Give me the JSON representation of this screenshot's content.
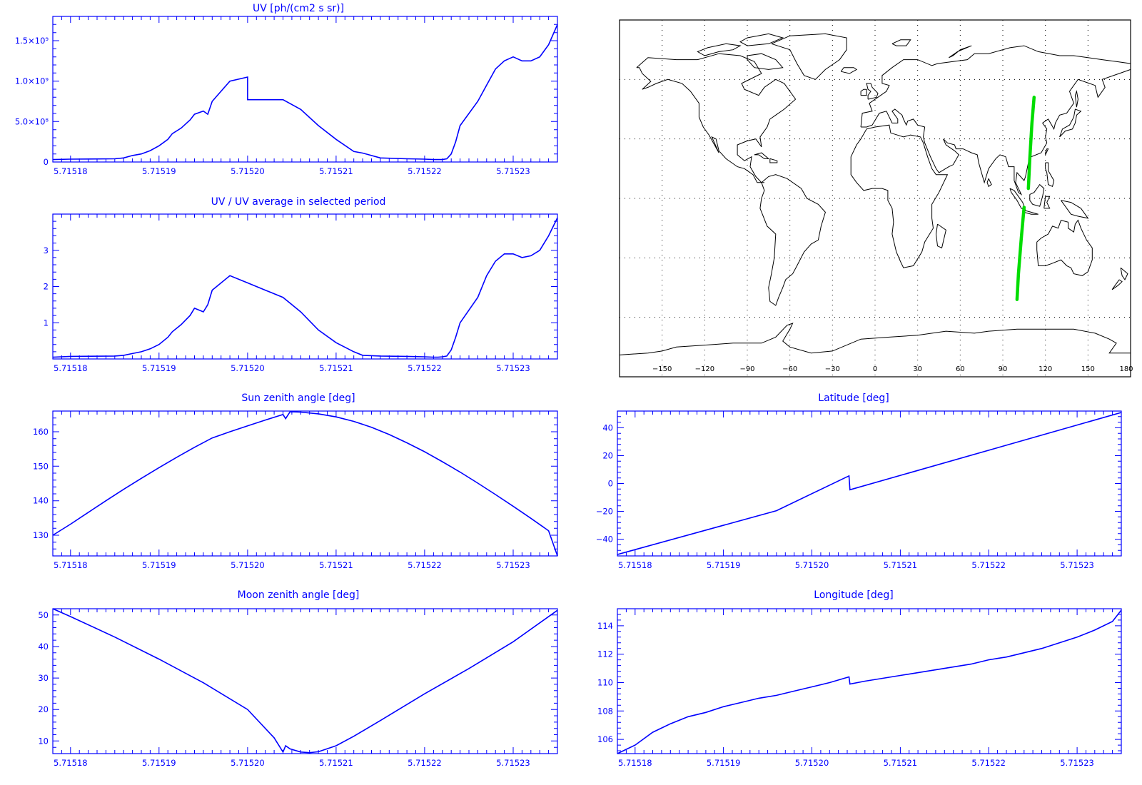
{
  "colors": {
    "plot": "#0000ff",
    "track": "#00dd00",
    "map_ink": "#000000"
  },
  "x_tick_labels": [
    "5.71518",
    "5.71519",
    "5.71520",
    "5.71521",
    "5.71522",
    "5.71523"
  ],
  "chart_data": [
    {
      "id": "uv",
      "type": "line",
      "title": "UV [ph/(cm2 s sr)]",
      "xlim": [
        5.715178,
        5.715235
      ],
      "ylim": [
        0,
        1800000000.0
      ],
      "yticks": [
        {
          "value": 0,
          "label": "0"
        },
        {
          "value": 500000000.0,
          "label": "5.0×10⁸"
        },
        {
          "value": 1000000000.0,
          "label": "1.0×10⁹"
        },
        {
          "value": 1500000000.0,
          "label": "1.5×10⁹"
        }
      ],
      "x": [
        5.715178,
        5.71518,
        5.715185,
        5.715186,
        5.715187,
        5.715188,
        5.715189,
        5.71519,
        5.715191,
        5.7151915,
        5.7151925,
        5.7151935,
        5.715194,
        5.715195,
        5.7151955,
        5.715196,
        5.715198,
        5.7152,
        5.7152,
        5.715202,
        5.715204,
        5.715206,
        5.715208,
        5.71521,
        5.715212,
        5.715213,
        5.715215,
        5.715218,
        5.71522,
        5.715221,
        5.7152215,
        5.715222,
        5.7152225,
        5.715223,
        5.7152235,
        5.715224,
        5.715226,
        5.715227,
        5.715228,
        5.715229,
        5.71523,
        5.715231,
        5.715232,
        5.715233,
        5.715234,
        5.715235
      ],
      "y": [
        30000000.0,
        35000000.0,
        40000000.0,
        50000000.0,
        80000000.0,
        100000000.0,
        140000000.0,
        200000000.0,
        280000000.0,
        350000000.0,
        420000000.0,
        520000000.0,
        590000000.0,
        630000000.0,
        590000000.0,
        750000000.0,
        1000000000.0,
        1050000000.0,
        770000000.0,
        770000000.0,
        770000000.0,
        650000000.0,
        450000000.0,
        280000000.0,
        130000000.0,
        110000000.0,
        50000000.0,
        40000000.0,
        35000000.0,
        30000000.0,
        30000000.0,
        30000000.0,
        40000000.0,
        100000000.0,
        250000000.0,
        450000000.0,
        750000000.0,
        950000000.0,
        1150000000.0,
        1250000000.0,
        1300000000.0,
        1250000000.0,
        1250000000.0,
        1300000000.0,
        1450000000.0,
        1700000000.0
      ]
    },
    {
      "id": "uv_ratio",
      "type": "line",
      "title": "UV / UV average in selected period",
      "xlim": [
        5.715178,
        5.715235
      ],
      "ylim": [
        0,
        4
      ],
      "yticks": [
        {
          "value": 1,
          "label": "1"
        },
        {
          "value": 2,
          "label": "2"
        },
        {
          "value": 3,
          "label": "3"
        }
      ],
      "x": [
        5.715178,
        5.71518,
        5.715185,
        5.715186,
        5.715187,
        5.715188,
        5.715189,
        5.71519,
        5.715191,
        5.7151915,
        5.7151925,
        5.7151935,
        5.715194,
        5.715195,
        5.7151955,
        5.715196,
        5.715198,
        5.7152,
        5.715202,
        5.715204,
        5.715206,
        5.715208,
        5.71521,
        5.715212,
        5.715213,
        5.715215,
        5.715218,
        5.71522,
        5.715221,
        5.7152215,
        5.715222,
        5.7152225,
        5.715223,
        5.7152235,
        5.715224,
        5.715226,
        5.715227,
        5.715228,
        5.715229,
        5.71523,
        5.715231,
        5.715232,
        5.715233,
        5.715234,
        5.715235
      ],
      "y": [
        0.05,
        0.07,
        0.08,
        0.1,
        0.15,
        0.2,
        0.28,
        0.4,
        0.6,
        0.75,
        0.95,
        1.2,
        1.4,
        1.3,
        1.5,
        1.9,
        2.3,
        2.1,
        1.9,
        1.7,
        1.3,
        0.8,
        0.45,
        0.2,
        0.1,
        0.08,
        0.07,
        0.06,
        0.05,
        0.05,
        0.06,
        0.08,
        0.25,
        0.6,
        1.0,
        1.7,
        2.3,
        2.7,
        2.9,
        2.9,
        2.8,
        2.85,
        3.0,
        3.4,
        3.9
      ]
    },
    {
      "id": "sun_zenith",
      "type": "line",
      "title": "Sun zenith angle [deg]",
      "xlim": [
        5.715178,
        5.715235
      ],
      "ylim": [
        124,
        166
      ],
      "yticks": [
        {
          "value": 130,
          "label": "130"
        },
        {
          "value": 140,
          "label": "140"
        },
        {
          "value": 150,
          "label": "150"
        },
        {
          "value": 160,
          "label": "160"
        }
      ],
      "x": [
        5.715178,
        5.71518,
        5.715182,
        5.715184,
        5.715186,
        5.715188,
        5.71519,
        5.715192,
        5.715194,
        5.715196,
        5.715198,
        5.7152,
        5.715202,
        5.715204,
        5.7152043,
        5.7152048,
        5.715206,
        5.715208,
        5.71521,
        5.715212,
        5.715214,
        5.715216,
        5.715218,
        5.71522,
        5.715222,
        5.715224,
        5.715226,
        5.715228,
        5.71523,
        5.715232,
        5.715234,
        5.715235
      ],
      "y": [
        130,
        133.2,
        136.6,
        140,
        143.3,
        146.5,
        149.6,
        152.6,
        155.5,
        158.2,
        160,
        161.7,
        163.4,
        165,
        163.8,
        165.8,
        165.7,
        165.2,
        164.3,
        163,
        161.3,
        159.2,
        156.8,
        154.2,
        151.3,
        148.3,
        145.1,
        141.8,
        138.4,
        134.9,
        131.3,
        124
      ]
    },
    {
      "id": "latitude",
      "type": "line",
      "title": "Latitude [deg]",
      "xlim": [
        5.715178,
        5.715235
      ],
      "ylim": [
        -52,
        52
      ],
      "yticks": [
        {
          "value": -40,
          "label": "−40"
        },
        {
          "value": -20,
          "label": "−20"
        },
        {
          "value": 0,
          "label": "0"
        },
        {
          "value": 20,
          "label": "20"
        },
        {
          "value": 40,
          "label": "40"
        }
      ],
      "x": [
        5.715178,
        5.715196,
        5.7152042,
        5.7152043,
        5.715235
      ],
      "y": [
        -51,
        -19.5,
        5.5,
        -4.5,
        51
      ]
    },
    {
      "id": "moon_zenith",
      "type": "line",
      "title": "Moon zenith angle [deg]",
      "xlim": [
        5.715178,
        5.715235
      ],
      "ylim": [
        6,
        52
      ],
      "yticks": [
        {
          "value": 10,
          "label": "10"
        },
        {
          "value": 20,
          "label": "20"
        },
        {
          "value": 30,
          "label": "30"
        },
        {
          "value": 40,
          "label": "40"
        },
        {
          "value": 50,
          "label": "50"
        }
      ],
      "x": [
        5.715178,
        5.71518,
        5.715185,
        5.71519,
        5.715195,
        5.7152,
        5.715203,
        5.715204,
        5.7152043,
        5.7152048,
        5.715206,
        5.715207,
        5.715208,
        5.71521,
        5.715212,
        5.715215,
        5.71522,
        5.715225,
        5.71523,
        5.715235
      ],
      "y": [
        52,
        49.5,
        43,
        36,
        28.5,
        20,
        11,
        6.5,
        8.5,
        7.5,
        6.5,
        6.3,
        6.6,
        8.5,
        11.5,
        16.5,
        25,
        33,
        41.5,
        51.5
      ]
    },
    {
      "id": "longitude",
      "type": "line",
      "title": "Longitude [deg]",
      "xlim": [
        5.715178,
        5.715235
      ],
      "ylim": [
        105,
        115.2
      ],
      "yticks": [
        {
          "value": 106,
          "label": "106"
        },
        {
          "value": 108,
          "label": "108"
        },
        {
          "value": 110,
          "label": "110"
        },
        {
          "value": 112,
          "label": "112"
        },
        {
          "value": 114,
          "label": "114"
        }
      ],
      "x": [
        5.715178,
        5.71518,
        5.715182,
        5.715184,
        5.715186,
        5.715188,
        5.71519,
        5.715192,
        5.715194,
        5.715196,
        5.715198,
        5.7152,
        5.715202,
        5.7152042,
        5.7152043,
        5.715206,
        5.715208,
        5.71521,
        5.715212,
        5.715214,
        5.715216,
        5.715218,
        5.71522,
        5.715222,
        5.715224,
        5.715226,
        5.715228,
        5.71523,
        5.715232,
        5.715234,
        5.715235
      ],
      "y": [
        105,
        105.6,
        106.5,
        107.1,
        107.6,
        107.9,
        108.3,
        108.6,
        108.9,
        109.1,
        109.4,
        109.7,
        110,
        110.4,
        109.9,
        110.1,
        110.3,
        110.5,
        110.7,
        110.9,
        111.1,
        111.3,
        111.6,
        111.8,
        112.1,
        112.4,
        112.8,
        113.2,
        113.7,
        114.3,
        115.1
      ]
    }
  ],
  "map": {
    "lon_ticks": [
      "−150",
      "−120",
      "−90",
      "−60",
      "−30",
      "0",
      "30",
      "60",
      "90",
      "120",
      "150",
      "180"
    ],
    "lon_values": [
      -150,
      -120,
      -90,
      -60,
      -30,
      0,
      30,
      60,
      90,
      120,
      150,
      180
    ],
    "lat_grid": [
      -60,
      -30,
      0,
      30,
      60
    ],
    "track_segments": [
      [
        [
          112,
          51
        ],
        [
          110.5,
          38
        ],
        [
          109,
          20
        ],
        [
          108,
          5
        ]
      ],
      [
        [
          105,
          -4.5
        ],
        [
          103,
          -20
        ],
        [
          101,
          -38
        ],
        [
          100,
          -51
        ]
      ]
    ]
  }
}
